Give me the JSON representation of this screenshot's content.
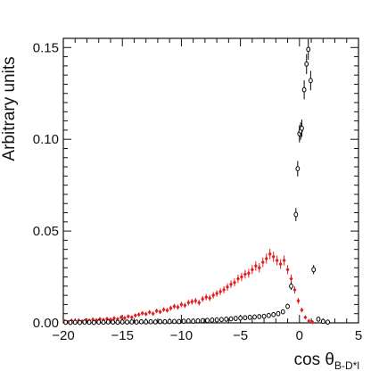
{
  "chart_data": {
    "type": "scatter",
    "xlabel": "cos θ",
    "xlabel_sub": "B-D*l",
    "ylabel": "Arbitrary units",
    "xlim": [
      -20,
      5
    ],
    "ylim": [
      0,
      0.155
    ],
    "x_ticks": [
      -20,
      -15,
      -10,
      -5,
      0,
      5
    ],
    "x_tick_labels": [
      "−20",
      "−15",
      "−10",
      "−5",
      "0",
      "5"
    ],
    "y_ticks": [
      0,
      0.05,
      0.1,
      0.15
    ],
    "y_tick_labels": [
      "0.00",
      "0.05",
      "0.10",
      "0.15"
    ],
    "grid": false,
    "legend": "none",
    "series": [
      {
        "color": "#e02020",
        "marker": "filled-diamond",
        "points": [
          [
            -19.9,
            0.0008
          ],
          [
            -19.6,
            0.0005
          ],
          [
            -19.3,
            0.0012
          ],
          [
            -19.0,
            0.001
          ],
          [
            -18.7,
            0.0013
          ],
          [
            -18.4,
            0.0008
          ],
          [
            -18.1,
            0.0015
          ],
          [
            -17.8,
            0.0012
          ],
          [
            -17.5,
            0.0018
          ],
          [
            -17.2,
            0.0014
          ],
          [
            -16.9,
            0.002
          ],
          [
            -16.6,
            0.0016
          ],
          [
            -16.3,
            0.0022
          ],
          [
            -16.0,
            0.0018
          ],
          [
            -15.7,
            0.0025
          ],
          [
            -15.4,
            0.002
          ],
          [
            -15.1,
            0.003
          ],
          [
            -14.8,
            0.0026
          ],
          [
            -14.5,
            0.0035
          ],
          [
            -14.2,
            0.003
          ],
          [
            -13.9,
            0.004
          ],
          [
            -13.6,
            0.0045
          ],
          [
            -13.3,
            0.0052
          ],
          [
            -13.0,
            0.0048
          ],
          [
            -12.7,
            0.0058
          ],
          [
            -12.4,
            0.005
          ],
          [
            -12.1,
            0.0065
          ],
          [
            -11.8,
            0.006
          ],
          [
            -11.5,
            0.0072
          ],
          [
            -11.2,
            0.0068
          ],
          [
            -10.9,
            0.008
          ],
          [
            -10.6,
            0.009
          ],
          [
            -10.3,
            0.0085
          ],
          [
            -10.0,
            0.01
          ],
          [
            -9.7,
            0.0095
          ],
          [
            -9.4,
            0.011
          ],
          [
            -9.1,
            0.0115
          ],
          [
            -8.8,
            0.012
          ],
          [
            -8.5,
            0.011
          ],
          [
            -8.2,
            0.013
          ],
          [
            -7.9,
            0.014
          ],
          [
            -7.6,
            0.0135
          ],
          [
            -7.3,
            0.015
          ],
          [
            -7.0,
            0.016
          ],
          [
            -6.7,
            0.017
          ],
          [
            -6.4,
            0.018
          ],
          [
            -6.1,
            0.0195
          ],
          [
            -5.8,
            0.021
          ],
          [
            -5.5,
            0.022
          ],
          [
            -5.2,
            0.024
          ],
          [
            -4.9,
            0.025
          ],
          [
            -4.6,
            0.0265
          ],
          [
            -4.3,
            0.027
          ],
          [
            -4.0,
            0.029
          ],
          [
            -3.7,
            0.031
          ],
          [
            -3.4,
            0.03
          ],
          [
            -3.1,
            0.033
          ],
          [
            -2.8,
            0.035
          ],
          [
            -2.5,
            0.0375
          ],
          [
            -2.2,
            0.036
          ],
          [
            -1.9,
            0.034
          ],
          [
            -1.6,
            0.032
          ],
          [
            -1.3,
            0.034
          ],
          [
            -1.0,
            0.029
          ],
          [
            -0.7,
            0.024
          ],
          [
            -0.4,
            0.018
          ],
          [
            -0.1,
            0.012
          ],
          [
            0.2,
            0.007
          ],
          [
            0.5,
            0.003
          ],
          [
            0.8,
            0.001
          ],
          [
            1.1,
            0.0004
          ]
        ]
      },
      {
        "color": "#000000",
        "marker": "open-circle",
        "points": [
          [
            -19.8,
            0.0003
          ],
          [
            -19.4,
            0.0002
          ],
          [
            -19.0,
            0.0003
          ],
          [
            -18.6,
            0.0002
          ],
          [
            -18.2,
            0.0004
          ],
          [
            -17.8,
            0.0003
          ],
          [
            -17.4,
            0.0002
          ],
          [
            -17.0,
            0.0004
          ],
          [
            -16.6,
            0.0003
          ],
          [
            -16.2,
            0.0005
          ],
          [
            -15.8,
            0.0004
          ],
          [
            -15.4,
            0.0003
          ],
          [
            -15.0,
            0.0005
          ],
          [
            -14.6,
            0.0004
          ],
          [
            -14.2,
            0.0005
          ],
          [
            -13.8,
            0.0004
          ],
          [
            -13.4,
            0.0006
          ],
          [
            -13.0,
            0.0005
          ],
          [
            -12.6,
            0.0006
          ],
          [
            -12.2,
            0.0005
          ],
          [
            -11.8,
            0.0007
          ],
          [
            -11.4,
            0.0006
          ],
          [
            -11.0,
            0.0007
          ],
          [
            -10.6,
            0.0008
          ],
          [
            -10.2,
            0.0007
          ],
          [
            -9.8,
            0.0009
          ],
          [
            -9.4,
            0.001
          ],
          [
            -9.0,
            0.0009
          ],
          [
            -8.6,
            0.0011
          ],
          [
            -8.2,
            0.0012
          ],
          [
            -7.8,
            0.0013
          ],
          [
            -7.4,
            0.0015
          ],
          [
            -7.0,
            0.0016
          ],
          [
            -6.6,
            0.0018
          ],
          [
            -6.2,
            0.002
          ],
          [
            -5.8,
            0.0022
          ],
          [
            -5.4,
            0.0024
          ],
          [
            -5.0,
            0.0026
          ],
          [
            -4.6,
            0.0028
          ],
          [
            -4.2,
            0.003
          ],
          [
            -3.8,
            0.0032
          ],
          [
            -3.4,
            0.0034
          ],
          [
            -3.0,
            0.0036
          ],
          [
            -2.6,
            0.004
          ],
          [
            -2.2,
            0.0045
          ],
          [
            -1.8,
            0.005
          ],
          [
            -1.4,
            0.006
          ],
          [
            -1.0,
            0.009
          ],
          [
            -0.7,
            0.02
          ],
          [
            -0.3,
            0.059
          ],
          [
            -0.15,
            0.084
          ],
          [
            0.0,
            0.103
          ],
          [
            0.1,
            0.1045
          ],
          [
            0.2,
            0.106
          ],
          [
            0.4,
            0.127
          ],
          [
            0.6,
            0.141
          ],
          [
            0.75,
            0.149
          ],
          [
            0.95,
            0.132
          ],
          [
            1.2,
            0.029
          ],
          [
            1.6,
            0.002
          ],
          [
            2.0,
            0.0008
          ],
          [
            2.4,
            0.0004
          ]
        ]
      }
    ]
  }
}
